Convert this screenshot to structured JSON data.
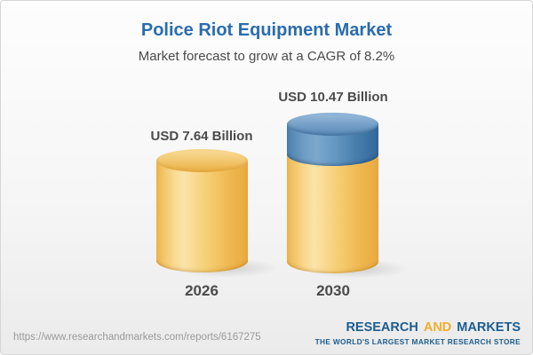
{
  "header": {
    "title": "Police Riot Equipment Market",
    "subtitle": "Market forecast to grow at a CAGR of 8.2%"
  },
  "chart_data": {
    "type": "bar",
    "variant": "3d-cylinder",
    "categories": [
      "2026",
      "2030"
    ],
    "values": [
      7.64,
      10.47
    ],
    "value_labels": [
      "USD 7.64 Billion",
      "USD 10.47 Billion"
    ],
    "units": "USD Billion",
    "title": "Police Riot Equipment Market",
    "subtitle": "Market forecast to grow at a CAGR of 8.2%",
    "cagr_percent": 8.2,
    "xlabel": "",
    "ylabel": "",
    "grid": false,
    "legend": false,
    "bar_colors": [
      "#f3c464",
      "#f3c464 with #4b80ad growth segment on top"
    ]
  },
  "bars": [
    {
      "year": "2026",
      "value_label": "USD 7.64 Billion"
    },
    {
      "year": "2030",
      "value_label": "USD 10.47 Billion"
    }
  ],
  "footer": {
    "url": "https://www.researchandmarkets.com/reports/6167275",
    "logo": {
      "research": "RESEARCH",
      "and": "AND",
      "markets": "MARKETS",
      "tagline": "THE WORLD'S LARGEST MARKET RESEARCH STORE"
    }
  },
  "colors": {
    "title_blue": "#2a6cae",
    "text_dark": "#4b4b4b",
    "url_gray": "#9a9a9a",
    "logo_blue": "#1c5d90",
    "logo_gold": "#f0ad2d",
    "cylinder_yellow": "#f3c464",
    "cylinder_yellow_light": "#fbe3a8",
    "cylinder_yellow_dark": "#e9aa3f",
    "cylinder_blue": "#6195c0",
    "cylinder_blue_light": "#7da8cd",
    "cylinder_blue_dark": "#33689a",
    "background_top": "#fdfdfd",
    "background_bottom": "#ebebeb"
  }
}
